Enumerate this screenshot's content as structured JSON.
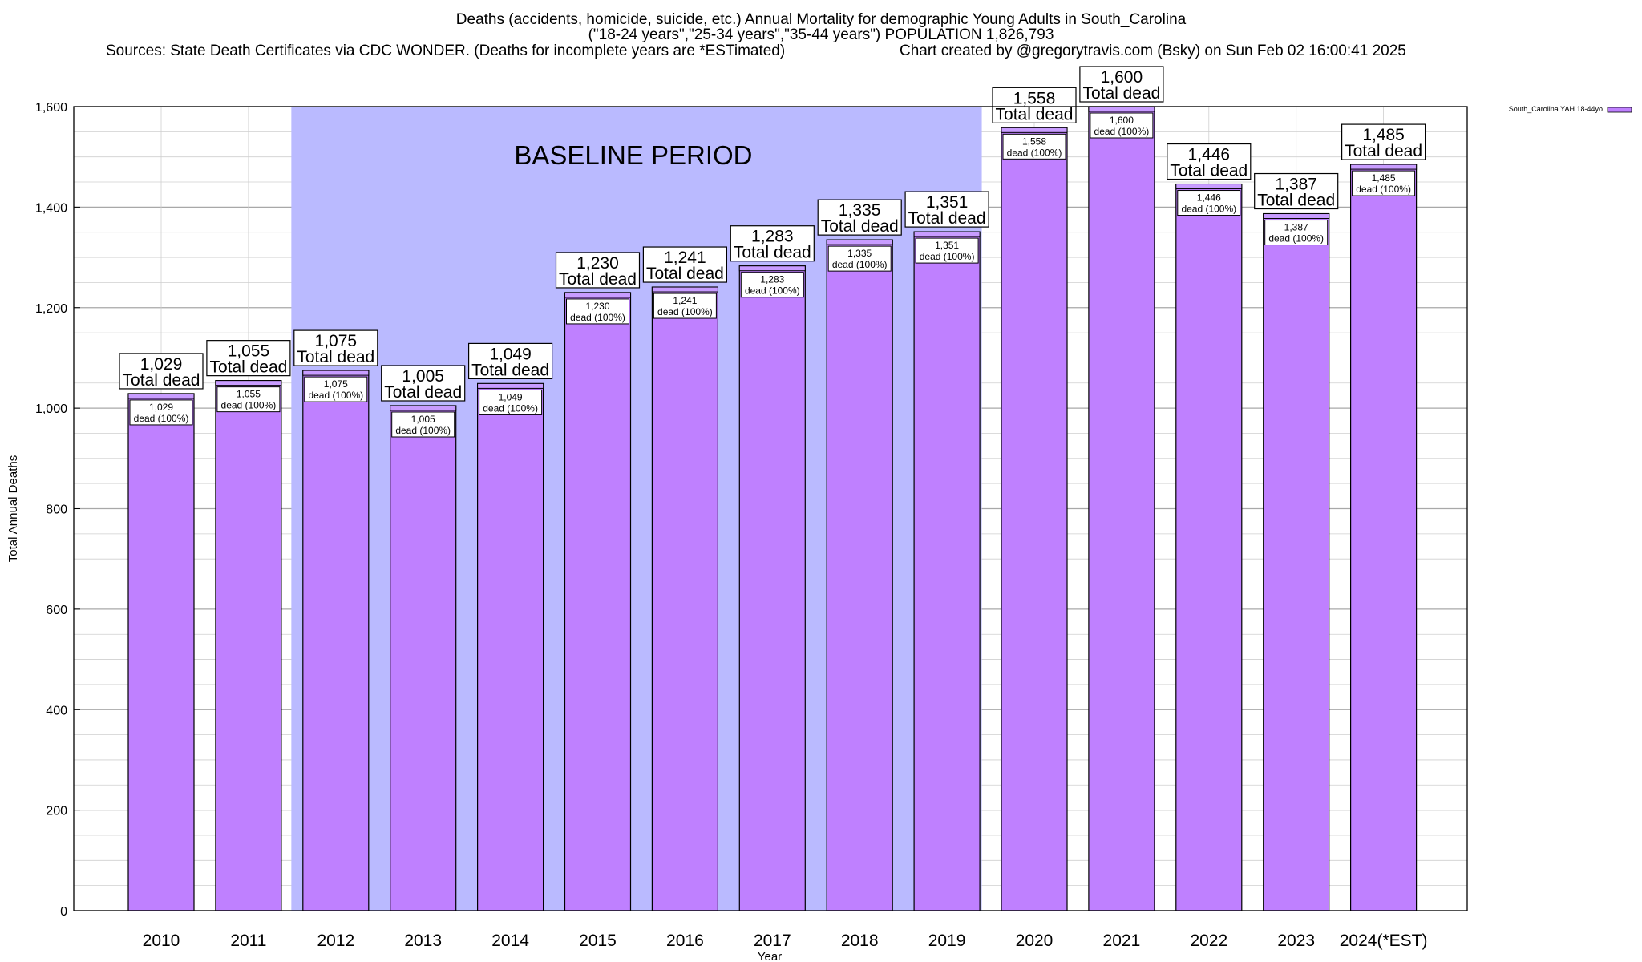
{
  "header": {
    "title_line1": "Deaths (accidents, homicide, suicide, etc.) Annual Mortality for demographic Young Adults in South_Carolina",
    "title_line2": "(\"18-24 years\",\"25-34 years\",\"35-44 years\") POPULATION 1,826,793",
    "sources": "Sources: State Death Certificates via CDC WONDER. (Deaths for incomplete years are *ESTimated)",
    "credit": "Chart created by @gregorytravis.com (Bsky) on Sun Feb 02 16:00:41 2025"
  },
  "chart_data": {
    "type": "bar",
    "title": "Deaths (accidents, homicide, suicide, etc.) Annual Mortality for demographic Young Adults in South_Carolina",
    "xlabel": "Year",
    "ylabel": "Total Annual Deaths",
    "ylim": [
      0,
      1600
    ],
    "yticks": [
      0,
      200,
      400,
      600,
      800,
      1000,
      1200,
      1400,
      1600
    ],
    "ytick_labels": [
      "0",
      "200",
      "400",
      "600",
      "800",
      "1,000",
      "1,200",
      "1,400",
      "1,600"
    ],
    "grid": true,
    "legend_position": "top-right",
    "categories": [
      "2010",
      "2011",
      "2012",
      "2013",
      "2014",
      "2015",
      "2016",
      "2017",
      "2018",
      "2019",
      "2020",
      "2021",
      "2022",
      "2023",
      "2024(*EST)"
    ],
    "series": [
      {
        "name": "South_Carolina YAH 18-44yo",
        "color": "#bf80ff",
        "values": [
          1029,
          1055,
          1075,
          1005,
          1049,
          1230,
          1241,
          1283,
          1335,
          1351,
          1558,
          1600,
          1446,
          1387,
          1485
        ]
      }
    ],
    "value_labels": [
      "1,029",
      "1,055",
      "1,075",
      "1,005",
      "1,049",
      "1,230",
      "1,241",
      "1,283",
      "1,335",
      "1,351",
      "1,558",
      "1,600",
      "1,446",
      "1,387",
      "1,485"
    ],
    "total_label_suffix": "Total dead",
    "inner_label_suffix": "dead (100%)",
    "annotation": {
      "text": "BASELINE PERIOD",
      "start_category": "2012",
      "end_category": "2019",
      "color": "#babaff"
    },
    "colors": {
      "bar_fill": "#bf80ff",
      "bar_top": "#c89cff",
      "baseline_band": "#babaff",
      "grid": "#b0b0b0"
    }
  }
}
